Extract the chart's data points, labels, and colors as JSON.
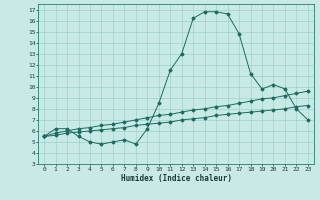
{
  "title": "",
  "xlabel": "Humidex (Indice chaleur)",
  "background_color": "#c8eae6",
  "grid_color": "#a0d0cc",
  "line_color": "#1a6b5e",
  "xlim": [
    -0.5,
    23.5
  ],
  "ylim": [
    3,
    17.5
  ],
  "xticks": [
    0,
    1,
    2,
    3,
    4,
    5,
    6,
    7,
    8,
    9,
    10,
    11,
    12,
    13,
    14,
    15,
    16,
    17,
    18,
    19,
    20,
    21,
    22,
    23
  ],
  "yticks": [
    3,
    4,
    5,
    6,
    7,
    8,
    9,
    10,
    11,
    12,
    13,
    14,
    15,
    16,
    17
  ],
  "line1_x": [
    0,
    1,
    2,
    3,
    4,
    5,
    6,
    7,
    8,
    9,
    10,
    11,
    12,
    13,
    14,
    15,
    16,
    17,
    18,
    19,
    20,
    21,
    22,
    23
  ],
  "line1_y": [
    5.5,
    6.2,
    6.2,
    5.5,
    5.0,
    4.8,
    5.0,
    5.2,
    4.8,
    6.2,
    8.5,
    11.5,
    13.0,
    16.2,
    16.8,
    16.8,
    16.6,
    14.8,
    11.2,
    9.8,
    10.2,
    9.8,
    8.0,
    7.0
  ],
  "line2_x": [
    0,
    1,
    2,
    3,
    4,
    5,
    6,
    7,
    8,
    9,
    10,
    11,
    12,
    13,
    14,
    15,
    16,
    17,
    18,
    19,
    20,
    21,
    22,
    23
  ],
  "line2_y": [
    5.5,
    5.8,
    6.0,
    6.2,
    6.3,
    6.5,
    6.6,
    6.8,
    7.0,
    7.2,
    7.4,
    7.5,
    7.7,
    7.9,
    8.0,
    8.2,
    8.3,
    8.5,
    8.7,
    8.9,
    9.0,
    9.2,
    9.4,
    9.6
  ],
  "line3_x": [
    0,
    1,
    2,
    3,
    4,
    5,
    6,
    7,
    8,
    9,
    10,
    11,
    12,
    13,
    14,
    15,
    16,
    17,
    18,
    19,
    20,
    21,
    22,
    23
  ],
  "line3_y": [
    5.5,
    5.6,
    5.8,
    5.9,
    6.0,
    6.1,
    6.2,
    6.3,
    6.5,
    6.6,
    6.7,
    6.8,
    7.0,
    7.1,
    7.2,
    7.4,
    7.5,
    7.6,
    7.7,
    7.8,
    7.9,
    8.0,
    8.2,
    8.3
  ]
}
